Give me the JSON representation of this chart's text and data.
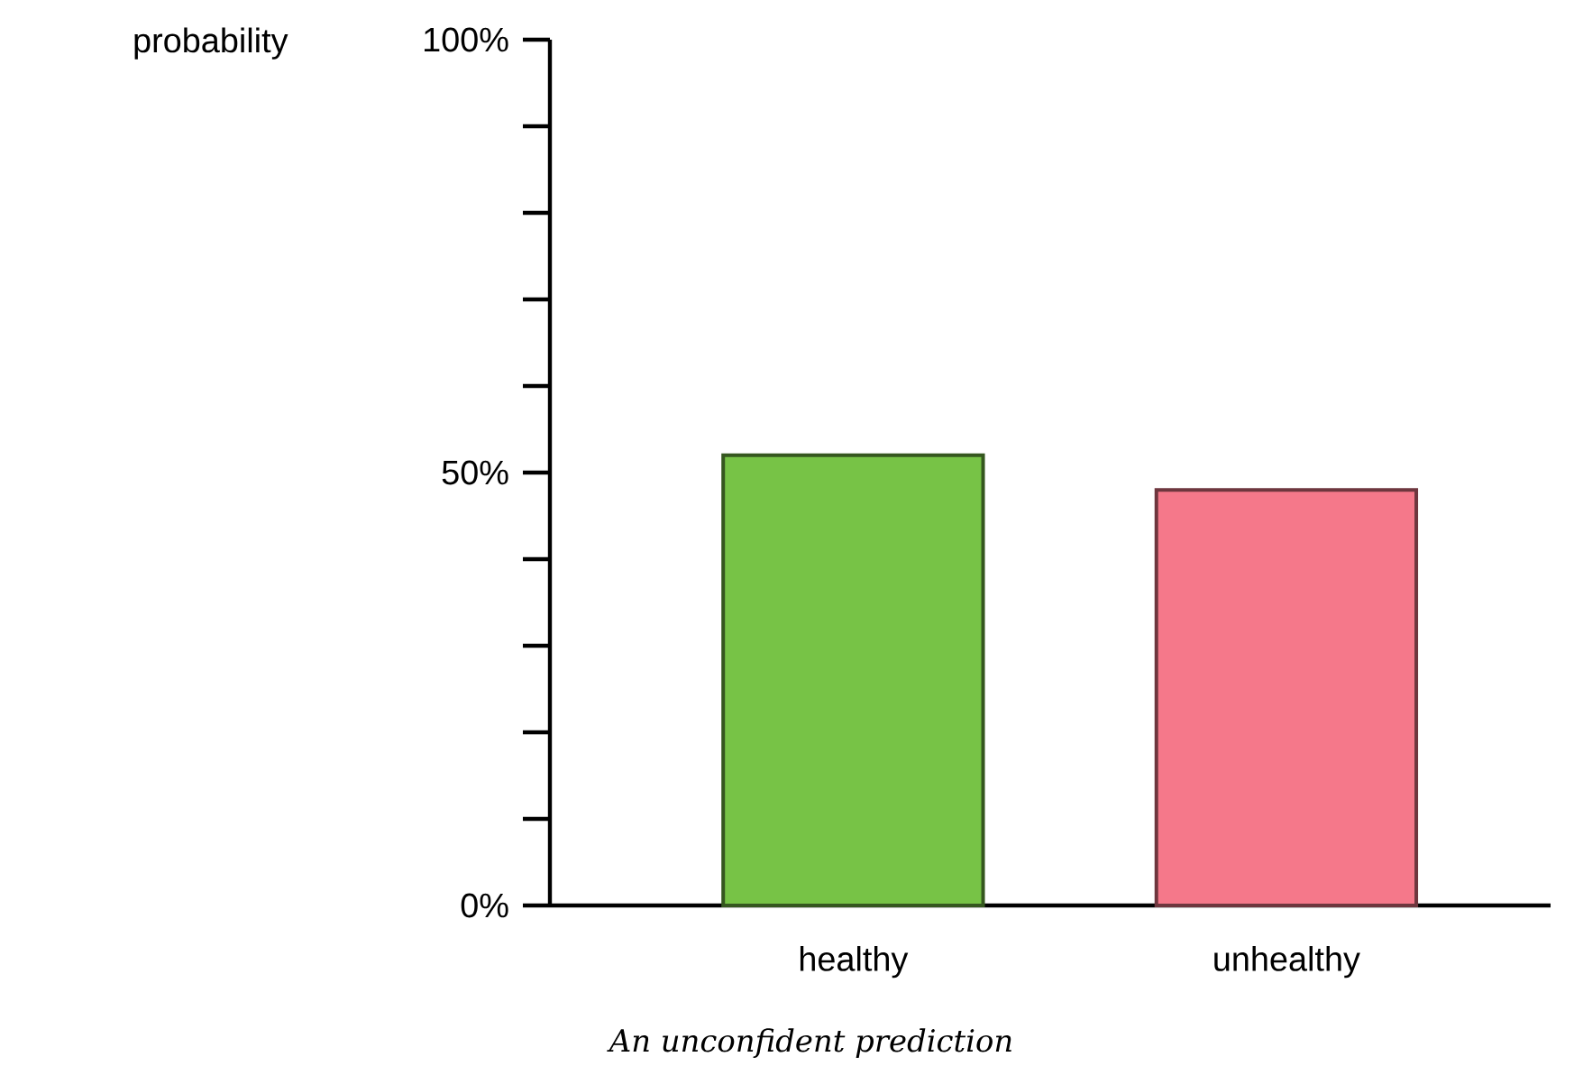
{
  "chart_data": {
    "type": "bar",
    "ylabel": "probability",
    "categories": [
      "healthy",
      "unhealthy"
    ],
    "values": [
      52,
      48
    ],
    "colors": [
      "#77c346",
      "#f5788a"
    ],
    "ylim": [
      0,
      100
    ],
    "yticks": [
      {
        "value": 0,
        "label": "0%"
      },
      {
        "value": 10,
        "label": null
      },
      {
        "value": 20,
        "label": null
      },
      {
        "value": 30,
        "label": null
      },
      {
        "value": 40,
        "label": null
      },
      {
        "value": 50,
        "label": "50%"
      },
      {
        "value": 60,
        "label": null
      },
      {
        "value": 70,
        "label": null
      },
      {
        "value": 80,
        "label": null
      },
      {
        "value": 90,
        "label": null
      },
      {
        "value": 100,
        "label": "100%"
      }
    ],
    "annotations": [
      "*An unconfident prediction*"
    ],
    "grid": false
  }
}
